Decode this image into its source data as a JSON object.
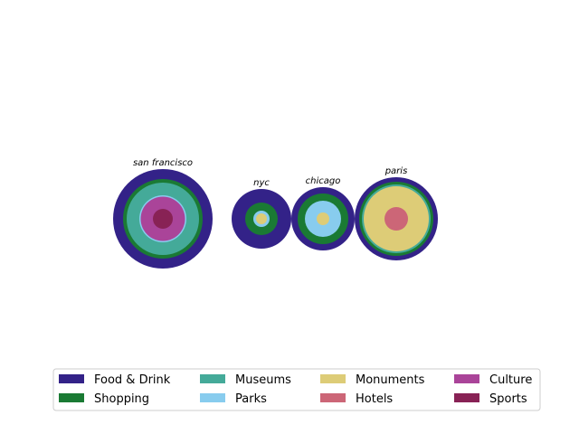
{
  "chart_data": {
    "type": "nested-circles",
    "title": "",
    "categories": [
      "Food & Drink",
      "Shopping",
      "Museums",
      "Parks",
      "Monuments",
      "Hotels",
      "Culture",
      "Sports"
    ],
    "colors": {
      "Food & Drink": "#332288",
      "Shopping": "#1a7a34",
      "Museums": "#44aa99",
      "Parks": "#88ccee",
      "Monuments": "#ddcc77",
      "Hotels": "#cc6677",
      "Culture": "#aa4499",
      "Sports": "#882255"
    },
    "cities": [
      {
        "name": "san francisco",
        "rings": [
          {
            "category": "Food & Drink",
            "radius": 55
          },
          {
            "category": "Shopping",
            "radius": 44
          },
          {
            "category": "Museums",
            "radius": 40
          },
          {
            "category": "Parks",
            "radius": 26
          },
          {
            "category": "Culture",
            "radius": 24.5
          },
          {
            "category": "Sports",
            "radius": 11
          }
        ]
      },
      {
        "name": "nyc",
        "rings": [
          {
            "category": "Food & Drink",
            "radius": 33
          },
          {
            "category": "Shopping",
            "radius": 18
          },
          {
            "category": "Parks",
            "radius": 9
          },
          {
            "category": "Monuments",
            "radius": 6
          }
        ]
      },
      {
        "name": "chicago",
        "rings": [
          {
            "category": "Food & Drink",
            "radius": 35
          },
          {
            "category": "Shopping",
            "radius": 28
          },
          {
            "category": "Parks",
            "radius": 20
          },
          {
            "category": "Monuments",
            "radius": 7
          }
        ]
      },
      {
        "name": "paris",
        "rings": [
          {
            "category": "Food & Drink",
            "radius": 46
          },
          {
            "category": "Shopping",
            "radius": 41
          },
          {
            "category": "Museums",
            "radius": 38
          },
          {
            "category": "Monuments",
            "radius": 36
          },
          {
            "category": "Hotels",
            "radius": 13
          }
        ]
      }
    ],
    "legend": {
      "placement": "lower-center",
      "columns": 4,
      "entries": [
        "Food & Drink",
        "Shopping",
        "Museums",
        "Parks",
        "Monuments",
        "Hotels",
        "Culture",
        "Sports"
      ]
    }
  }
}
